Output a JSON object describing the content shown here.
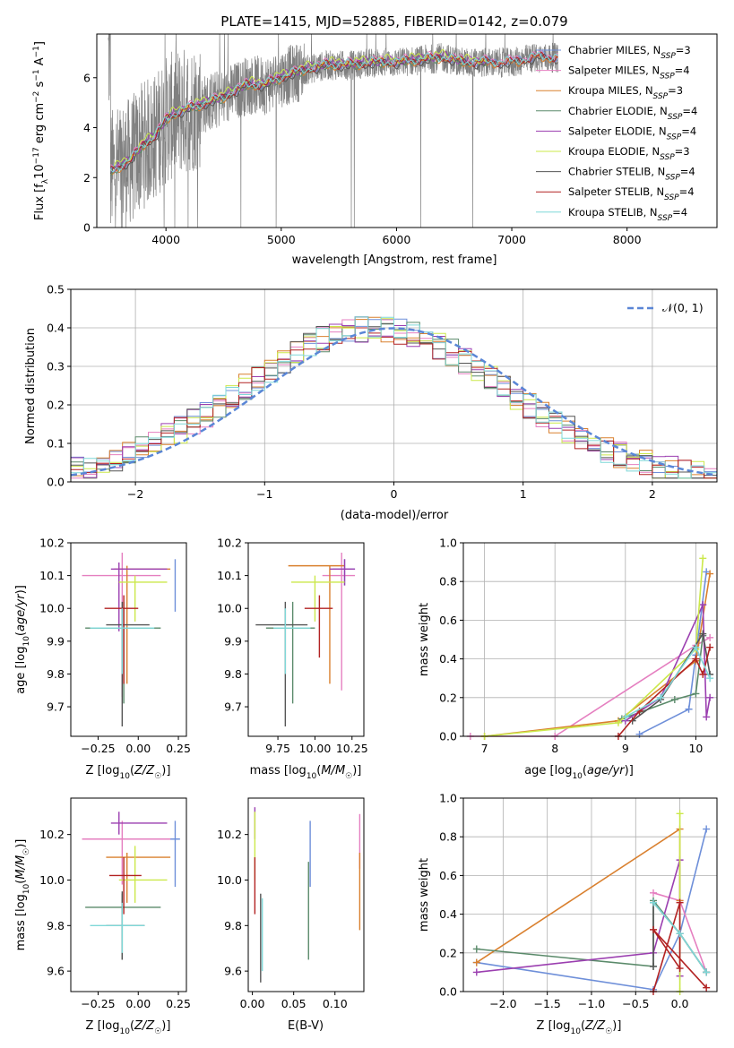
{
  "chart_data": [
    {
      "id": "spectrum",
      "type": "line",
      "title": "PLATE=1415, MJD=52885, FIBERID=0142, z=0.079",
      "xlabel": "wavelength [Angstrom, rest frame]",
      "ylabel": "Flux [f_λ 10^-17 erg cm^-2 s^-1 A^-1]",
      "xlim": [
        3400,
        8780
      ],
      "ylim": [
        0,
        7.75
      ],
      "xticks": [
        4000,
        5000,
        6000,
        7000,
        8000
      ],
      "yticks": [
        0,
        2,
        4,
        6
      ],
      "data_series": {
        "name": "data",
        "color": "#808080",
        "x_range": [
          3500,
          7400
        ]
      },
      "continuum": [
        [
          3520,
          2.2
        ],
        [
          3700,
          2.7
        ],
        [
          3800,
          3.3
        ],
        [
          3900,
          3.6
        ],
        [
          4000,
          4.3
        ],
        [
          4100,
          4.6
        ],
        [
          4300,
          4.9
        ],
        [
          4500,
          5.2
        ],
        [
          4700,
          5.7
        ],
        [
          4860,
          5.7
        ],
        [
          5000,
          6.0
        ],
        [
          5200,
          6.3
        ],
        [
          5400,
          6.5
        ],
        [
          5600,
          6.5
        ],
        [
          5800,
          6.6
        ],
        [
          6000,
          6.6
        ],
        [
          6200,
          6.7
        ],
        [
          6400,
          6.8
        ],
        [
          6600,
          6.6
        ],
        [
          6800,
          6.6
        ],
        [
          7000,
          6.6
        ],
        [
          7200,
          6.8
        ],
        [
          7400,
          6.8
        ]
      ],
      "legend_position": "right",
      "series": [
        {
          "name": "Chabrier MILES, N_SSP=3",
          "color": "#6e8fd9",
          "offset": 0.05,
          "x_max": 7400
        },
        {
          "name": "Salpeter MILES, N_SSP=4",
          "color": "#e57fc0",
          "offset": 0.12,
          "x_max": 7400
        },
        {
          "name": "Kroupa MILES, N_SSP=3",
          "color": "#d9802f",
          "offset": -0.02,
          "x_max": 7400
        },
        {
          "name": "Chabrier ELODIE, N_SSP=4",
          "color": "#5a8a6a",
          "offset": 0.0,
          "x_max": 6800
        },
        {
          "name": "Salpeter ELODIE, N_SSP=4",
          "color": "#9b3fb0",
          "offset": 0.08,
          "x_max": 6800
        },
        {
          "name": "Kroupa ELODIE, N_SSP=3",
          "color": "#cbe84a",
          "offset": 0.15,
          "x_max": 6800
        },
        {
          "name": "Chabrier STELIB, N_SSP=4",
          "color": "#555555",
          "offset": -0.05,
          "x_max": 7400
        },
        {
          "name": "Salpeter STELIB, N_SSP=4",
          "color": "#b22222",
          "offset": 0.03,
          "x_max": 7400
        },
        {
          "name": "Kroupa STELIB, N_SSP=4",
          "color": "#7fd8d8",
          "offset": 0.06,
          "x_max": 7400
        }
      ]
    },
    {
      "id": "residuals",
      "type": "line",
      "xlabel": "(data-model)/error",
      "ylabel": "Normed distribution",
      "xlim": [
        -2.5,
        2.5
      ],
      "ylim": [
        0,
        0.5
      ],
      "xticks": [
        -2,
        -1,
        0,
        1,
        2
      ],
      "yticks": [
        0.0,
        0.1,
        0.2,
        0.3,
        0.4,
        0.5
      ],
      "grid": true,
      "bins": {
        "start": -2.5,
        "width": 0.1,
        "count": 50
      },
      "reference": {
        "name": "𝒩(0, 1)",
        "color": "#5a86d6",
        "style": "dashed",
        "legend_position": "top-right"
      },
      "series_colors": [
        "#6e8fd9",
        "#e57fc0",
        "#d9802f",
        "#5a8a6a",
        "#9b3fb0",
        "#cbe84a",
        "#555555",
        "#b22222",
        "#7fd8d8"
      ]
    },
    {
      "id": "age_vs_Z",
      "type": "scatter",
      "xlabel": "Z [log10(Z/Z☉)]",
      "ylabel": "age [log10(age/yr)]",
      "xlim": [
        -0.42,
        0.3
      ],
      "ylim": [
        9.61,
        10.2
      ],
      "xticks": [
        -0.25,
        0.0,
        0.25
      ],
      "xtick_labels": [
        "−0.25",
        "0.00",
        "0.25"
      ],
      "yticks": [
        9.7,
        9.8,
        9.9,
        10.0,
        10.1,
        10.2
      ],
      "points": [
        {
          "color": "#6e8fd9",
          "x": 0.23,
          "y": 10.1,
          "xl": 0.23,
          "xh": 0.23,
          "yl": 9.99,
          "yh": 10.15
        },
        {
          "color": "#e57fc0",
          "x": -0.1,
          "y": 10.1,
          "xl": -0.35,
          "xh": 0.14,
          "yl": 9.73,
          "yh": 10.17
        },
        {
          "color": "#d9802f",
          "x": -0.07,
          "y": 10.12,
          "xl": -0.15,
          "xh": 0.2,
          "yl": 9.77,
          "yh": 10.13
        },
        {
          "color": "#5a8a6a",
          "x": -0.09,
          "y": 9.94,
          "xl": -0.33,
          "xh": 0.14,
          "yl": 9.71,
          "yh": 10.02
        },
        {
          "color": "#9b3fb0",
          "x": -0.12,
          "y": 10.12,
          "xl": -0.17,
          "xh": 0.18,
          "yl": 9.93,
          "yh": 10.14
        },
        {
          "color": "#cbe84a",
          "x": -0.02,
          "y": 10.08,
          "xl": -0.12,
          "xh": 0.18,
          "yl": 9.96,
          "yh": 10.1
        },
        {
          "color": "#555555",
          "x": -0.1,
          "y": 9.95,
          "xl": -0.2,
          "xh": 0.07,
          "yl": 9.64,
          "yh": 10.02
        },
        {
          "color": "#b22222",
          "x": -0.09,
          "y": 10.0,
          "xl": -0.21,
          "xh": -0.0,
          "yl": 9.77,
          "yh": 10.04
        },
        {
          "color": "#7fd8d8",
          "x": -0.1,
          "y": 9.94,
          "xl": -0.3,
          "xh": 0.1,
          "yl": 9.8,
          "yh": 10.0
        }
      ]
    },
    {
      "id": "age_vs_mass",
      "type": "scatter",
      "xlabel": "mass [log10(M/M☉)]",
      "xlim": [
        9.55,
        10.33
      ],
      "ylim": [
        9.61,
        10.2
      ],
      "xticks": [
        9.75,
        10.0,
        10.25
      ],
      "xtick_labels": [
        "9.75",
        "10.00",
        "10.25"
      ],
      "yticks": [
        9.7,
        9.8,
        9.9,
        10.0,
        10.1,
        10.2
      ],
      "points": [
        {
          "color": "#6e8fd9",
          "x": 10.2,
          "y": 10.12,
          "xl": 10.12,
          "xh": 10.27,
          "yl": 10.07,
          "yh": 10.15
        },
        {
          "color": "#e57fc0",
          "x": 10.18,
          "y": 10.1,
          "xl": 10.05,
          "xh": 10.27,
          "yl": 9.75,
          "yh": 10.17
        },
        {
          "color": "#d9802f",
          "x": 10.1,
          "y": 10.13,
          "xl": 9.82,
          "xh": 10.2,
          "yl": 9.77,
          "yh": 10.13
        },
        {
          "color": "#5a8a6a",
          "x": 9.85,
          "y": 9.94,
          "xl": 9.67,
          "xh": 10.0,
          "yl": 9.71,
          "yh": 10.02
        },
        {
          "color": "#9b3fb0",
          "x": 10.2,
          "y": 10.12,
          "xl": 10.1,
          "xh": 10.27,
          "yl": 10.07,
          "yh": 10.15
        },
        {
          "color": "#cbe84a",
          "x": 10.0,
          "y": 10.08,
          "xl": 9.84,
          "xh": 10.2,
          "yl": 9.96,
          "yh": 10.1
        },
        {
          "color": "#555555",
          "x": 9.8,
          "y": 9.95,
          "xl": 9.6,
          "xh": 9.95,
          "yl": 9.64,
          "yh": 10.02
        },
        {
          "color": "#b22222",
          "x": 10.03,
          "y": 10.0,
          "xl": 9.93,
          "xh": 10.12,
          "yl": 9.85,
          "yh": 10.04
        },
        {
          "color": "#7fd8d8",
          "x": 9.8,
          "y": 9.94,
          "xl": 9.72,
          "xh": 9.97,
          "yl": 9.8,
          "yh": 10.0
        }
      ]
    },
    {
      "id": "weight_vs_age",
      "type": "line",
      "xlabel": "age [log10(age/yr)]",
      "ylabel": "mass weight",
      "xlim": [
        6.7,
        10.3
      ],
      "ylim": [
        0,
        1
      ],
      "xticks": [
        7,
        8,
        9,
        10
      ],
      "yticks": [
        0.0,
        0.2,
        0.4,
        0.6,
        0.8,
        1.0
      ],
      "grid": true,
      "series": [
        {
          "color": "#6e8fd9",
          "points": [
            [
              9.2,
              0.01
            ],
            [
              9.9,
              0.14
            ],
            [
              10.0,
              0.42
            ],
            [
              10.15,
              0.85
            ]
          ]
        },
        {
          "color": "#e57fc0",
          "points": [
            [
              6.8,
              0.0
            ],
            [
              8.0,
              0.0
            ],
            [
              10.0,
              0.47
            ],
            [
              10.2,
              0.51
            ]
          ]
        },
        {
          "color": "#d9802f",
          "points": [
            [
              7.0,
              0.0
            ],
            [
              8.9,
              0.08
            ],
            [
              10.0,
              0.39
            ],
            [
              10.2,
              0.84
            ]
          ]
        },
        {
          "color": "#5a8a6a",
          "points": [
            [
              8.95,
              0.09
            ],
            [
              9.7,
              0.19
            ],
            [
              10.0,
              0.22
            ],
            [
              10.1,
              0.52
            ]
          ]
        },
        {
          "color": "#9b3fb0",
          "points": [
            [
              9.0,
              0.08
            ],
            [
              9.5,
              0.2
            ],
            [
              10.1,
              0.68
            ],
            [
              10.15,
              0.1
            ],
            [
              10.2,
              0.2
            ]
          ]
        },
        {
          "color": "#cbe84a",
          "points": [
            [
              7.0,
              0.0
            ],
            [
              8.9,
              0.07
            ],
            [
              10.0,
              0.45
            ],
            [
              10.1,
              0.92
            ]
          ]
        },
        {
          "color": "#555555",
          "points": [
            [
              9.1,
              0.08
            ],
            [
              9.5,
              0.19
            ],
            [
              10.1,
              0.53
            ],
            [
              10.2,
              0.32
            ]
          ]
        },
        {
          "color": "#b22222",
          "points": [
            [
              8.9,
              0.0
            ],
            [
              9.2,
              0.13
            ],
            [
              10.0,
              0.4
            ],
            [
              10.1,
              0.32
            ],
            [
              10.2,
              0.46
            ]
          ]
        },
        {
          "color": "#7fd8d8",
          "points": [
            [
              9.0,
              0.1
            ],
            [
              9.5,
              0.2
            ],
            [
              10.0,
              0.46
            ],
            [
              10.2,
              0.3
            ]
          ]
        }
      ]
    },
    {
      "id": "mass_vs_Z",
      "type": "scatter",
      "xlabel": "Z [log10(Z/Z☉)]",
      "ylabel": "mass [log10(M/M☉)]",
      "xlim": [
        -0.42,
        0.3
      ],
      "ylim": [
        9.51,
        10.36
      ],
      "xticks": [
        -0.25,
        0.0,
        0.25
      ],
      "xtick_labels": [
        "−0.25",
        "0.00",
        "0.25"
      ],
      "yticks": [
        9.6,
        9.8,
        10.0,
        10.2
      ],
      "points": [
        {
          "color": "#6e8fd9",
          "x": 0.23,
          "y": 10.18,
          "xl": -0.1,
          "xh": 0.26,
          "yl": 9.97,
          "yh": 10.26
        },
        {
          "color": "#e57fc0",
          "x": -0.1,
          "y": 10.18,
          "xl": -0.35,
          "xh": 0.2,
          "yl": 9.98,
          "yh": 10.26
        },
        {
          "color": "#d9802f",
          "x": -0.07,
          "y": 10.1,
          "xl": -0.2,
          "xh": 0.2,
          "yl": 9.9,
          "yh": 10.12
        },
        {
          "color": "#5a8a6a",
          "x": -0.1,
          "y": 9.88,
          "xl": -0.33,
          "xh": 0.14,
          "yl": 9.65,
          "yh": 9.94
        },
        {
          "color": "#9b3fb0",
          "x": -0.12,
          "y": 10.25,
          "xl": -0.17,
          "xh": 0.18,
          "yl": 10.2,
          "yh": 10.3
        },
        {
          "color": "#cbe84a",
          "x": -0.02,
          "y": 10.0,
          "xl": -0.12,
          "xh": 0.18,
          "yl": 9.9,
          "yh": 10.15
        },
        {
          "color": "#555555",
          "x": -0.1,
          "y": 9.8,
          "xl": -0.2,
          "xh": 0.04,
          "yl": 9.65,
          "yh": 9.95
        },
        {
          "color": "#b22222",
          "x": -0.09,
          "y": 10.02,
          "xl": -0.18,
          "xh": 0.02,
          "yl": 9.85,
          "yh": 10.1
        },
        {
          "color": "#7fd8d8",
          "x": -0.1,
          "y": 9.8,
          "xl": -0.3,
          "xh": 0.04,
          "yl": 9.68,
          "yh": 9.9
        }
      ]
    },
    {
      "id": "mass_vs_EBV",
      "type": "scatter",
      "xlabel": "E(B-V)",
      "xlim": [
        -0.005,
        0.135
      ],
      "ylim": [
        9.51,
        10.36
      ],
      "xticks": [
        0.0,
        0.05,
        0.1
      ],
      "xtick_labels": [
        "0.00",
        "0.05",
        "0.10"
      ],
      "yticks": [
        9.6,
        9.8,
        10.0,
        10.2
      ],
      "points": [
        {
          "color": "#6e8fd9",
          "x": 0.07,
          "y": 10.18,
          "xl": 0.07,
          "xh": 0.07,
          "yl": 9.97,
          "yh": 10.26
        },
        {
          "color": "#e57fc0",
          "x": 0.13,
          "y": 10.18,
          "xl": 0.13,
          "xh": 0.13,
          "yl": 10.05,
          "yh": 10.29
        },
        {
          "color": "#d9802f",
          "x": 0.13,
          "y": 10.0,
          "xl": 0.13,
          "xh": 0.13,
          "yl": 9.78,
          "yh": 10.12
        },
        {
          "color": "#5a8a6a",
          "x": 0.068,
          "y": 9.88,
          "xl": 0.068,
          "xh": 0.068,
          "yl": 9.65,
          "yh": 10.08
        },
        {
          "color": "#9b3fb0",
          "x": 0.003,
          "y": 10.25,
          "xl": 0.003,
          "xh": 0.003,
          "yl": 10.18,
          "yh": 10.32
        },
        {
          "color": "#cbe84a",
          "x": 0.003,
          "y": 10.15,
          "xl": 0.003,
          "xh": 0.003,
          "yl": 10.0,
          "yh": 10.3
        },
        {
          "color": "#555555",
          "x": 0.01,
          "y": 9.75,
          "xl": 0.01,
          "xh": 0.01,
          "yl": 9.55,
          "yh": 9.94
        },
        {
          "color": "#b22222",
          "x": 0.003,
          "y": 10.0,
          "xl": 0.003,
          "xh": 0.003,
          "yl": 9.85,
          "yh": 10.1
        },
        {
          "color": "#7fd8d8",
          "x": 0.012,
          "y": 9.75,
          "xl": 0.012,
          "xh": 0.012,
          "yl": 9.6,
          "yh": 9.92
        }
      ]
    },
    {
      "id": "weight_vs_Z",
      "type": "line",
      "xlabel": "Z [log10(Z/Z☉)]",
      "ylabel": "mass weight",
      "xlim": [
        -2.45,
        0.42
      ],
      "ylim": [
        0,
        1
      ],
      "xticks": [
        -2.0,
        -1.5,
        -1.0,
        -0.5,
        0.0
      ],
      "xtick_labels": [
        "−2.0",
        "−1.5",
        "−1.0",
        "−0.5",
        "0.0"
      ],
      "yticks": [
        0.0,
        0.2,
        0.4,
        0.6,
        0.8,
        1.0
      ],
      "grid": true,
      "series": [
        {
          "color": "#6e8fd9",
          "points": [
            [
              -2.3,
              0.15
            ],
            [
              -0.3,
              0.01
            ],
            [
              0.0,
              0.3
            ],
            [
              0.3,
              0.84
            ]
          ]
        },
        {
          "color": "#e57fc0",
          "points": [
            [
              -0.3,
              0.51
            ],
            [
              0.0,
              0.47
            ],
            [
              0.3,
              0.1
            ]
          ]
        },
        {
          "color": "#d9802f",
          "points": [
            [
              -2.3,
              0.15
            ],
            [
              0.0,
              0.84
            ],
            [
              0.0,
              0.47
            ]
          ]
        },
        {
          "color": "#5a8a6a",
          "points": [
            [
              -2.3,
              0.22
            ],
            [
              -0.3,
              0.13
            ],
            [
              -0.3,
              0.47
            ],
            [
              0.0,
              0.3
            ],
            [
              0.3,
              0.1
            ]
          ]
        },
        {
          "color": "#9b3fb0",
          "points": [
            [
              -2.3,
              0.1
            ],
            [
              -0.3,
              0.2
            ],
            [
              0.0,
              0.68
            ],
            [
              0.0,
              0.08
            ]
          ]
        },
        {
          "color": "#cbe84a",
          "points": [
            [
              0.0,
              0.92
            ],
            [
              0.0,
              0.0
            ]
          ]
        },
        {
          "color": "#555555",
          "points": [
            [
              -0.3,
              0.13
            ],
            [
              -0.3,
              0.46
            ],
            [
              0.0,
              0.3
            ],
            [
              0.3,
              0.1
            ]
          ]
        },
        {
          "color": "#b22222",
          "points": [
            [
              -0.3,
              0.0
            ],
            [
              0.0,
              0.46
            ],
            [
              0.0,
              0.12
            ],
            [
              -0.3,
              0.32
            ],
            [
              0.3,
              0.02
            ]
          ]
        },
        {
          "color": "#7fd8d8",
          "points": [
            [
              -0.3,
              0.46
            ],
            [
              0.0,
              0.3
            ],
            [
              0.3,
              0.1
            ]
          ]
        }
      ]
    }
  ]
}
